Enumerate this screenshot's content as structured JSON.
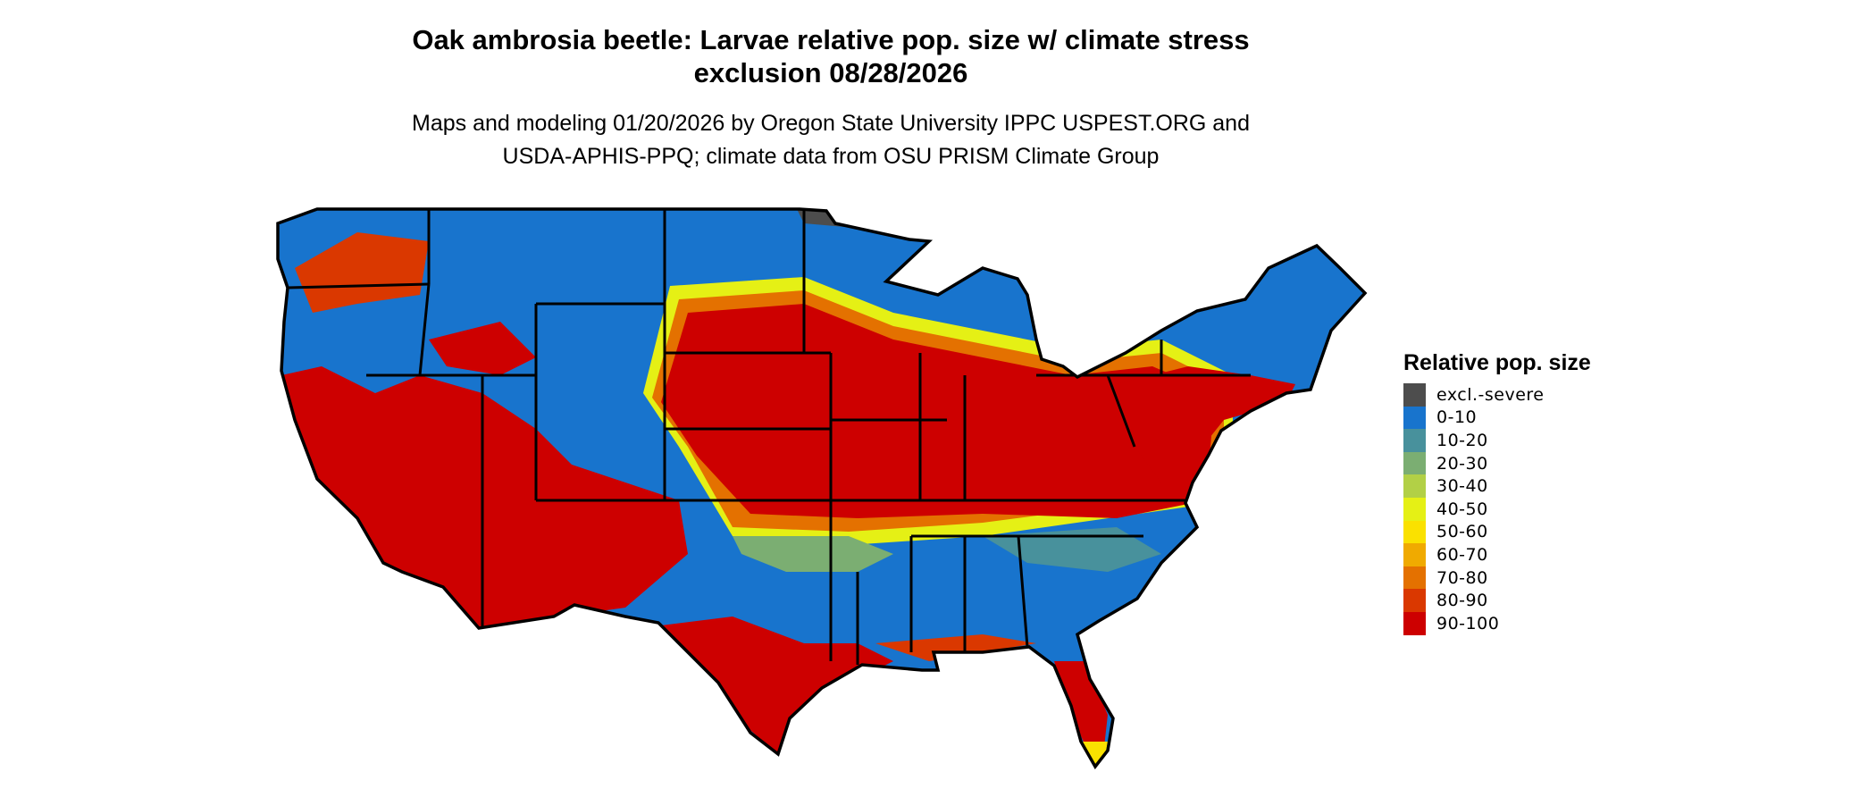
{
  "title_line1": "Oak ambrosia beetle: Larvae relative pop. size w/ climate stress",
  "title_line2": "exclusion 08/28/2026",
  "subtitle_line1": "Maps and modeling 01/20/2026 by Oregon State University IPPC USPEST.ORG and",
  "subtitle_line2": "USDA-APHIS-PPQ; climate data from OSU PRISM Climate Group",
  "map": {
    "region": "Contiguous United States",
    "base_color": "#1874cd",
    "border_color": "#000000"
  },
  "legend": {
    "title": "Relative pop. size",
    "items": [
      {
        "label": "excl.-severe",
        "color": "#4d4d4d"
      },
      {
        "label": "0-10",
        "color": "#1874cd"
      },
      {
        "label": "10-20",
        "color": "#48919c"
      },
      {
        "label": "20-30",
        "color": "#7bae72"
      },
      {
        "label": "30-40",
        "color": "#b2d046"
      },
      {
        "label": "40-50",
        "color": "#e5f015"
      },
      {
        "label": "50-60",
        "color": "#fae100"
      },
      {
        "label": "60-70",
        "color": "#f0aa00"
      },
      {
        "label": "70-80",
        "color": "#e47100"
      },
      {
        "label": "80-90",
        "color": "#da3800"
      },
      {
        "label": "90-100",
        "color": "#cd0000"
      }
    ]
  }
}
